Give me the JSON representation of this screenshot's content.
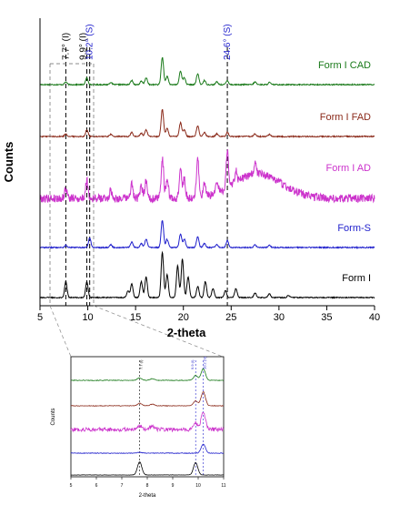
{
  "chart_data": [
    {
      "type": "line",
      "xlabel": "2-theta",
      "ylabel": "Counts",
      "xlim": [
        5,
        40
      ],
      "x_ticks": [
        5,
        10,
        15,
        20,
        25,
        30,
        35,
        40
      ],
      "vlines": [
        {
          "x": 7.7,
          "label": "7.7° (I)",
          "color": "#000000"
        },
        {
          "x": 9.9,
          "label": "9.9° (I)",
          "color": "#000000"
        },
        {
          "x": 10.2,
          "label": "10.2° (S)",
          "color": "#1f1fcc"
        },
        {
          "x": 24.6,
          "label": "24.6° (S)",
          "color": "#1f1fcc"
        }
      ],
      "series": [
        {
          "name": "Form I CAD",
          "color": "#1a7a1a",
          "peaks": [
            [
              7.7,
              0.1
            ],
            [
              9.9,
              0.25
            ],
            [
              12.4,
              0.08
            ],
            [
              14.6,
              0.15
            ],
            [
              15.6,
              0.12
            ],
            [
              16.1,
              0.25
            ],
            [
              17.8,
              1.0
            ],
            [
              18.3,
              0.3
            ],
            [
              19.7,
              0.5
            ],
            [
              20.1,
              0.25
            ],
            [
              21.5,
              0.4
            ],
            [
              22.2,
              0.15
            ],
            [
              23.5,
              0.1
            ],
            [
              24.6,
              0.15
            ],
            [
              27.5,
              0.1
            ],
            [
              29.0,
              0.08
            ]
          ],
          "noise": 0.02
        },
        {
          "name": "Form I FAD",
          "color": "#8b2a1a",
          "peaks": [
            [
              7.7,
              0.1
            ],
            [
              9.9,
              0.25
            ],
            [
              12.4,
              0.08
            ],
            [
              14.6,
              0.15
            ],
            [
              15.6,
              0.12
            ],
            [
              16.1,
              0.25
            ],
            [
              17.8,
              1.0
            ],
            [
              18.3,
              0.3
            ],
            [
              19.7,
              0.5
            ],
            [
              20.1,
              0.25
            ],
            [
              21.5,
              0.4
            ],
            [
              22.2,
              0.15
            ],
            [
              23.5,
              0.1
            ],
            [
              24.6,
              0.15
            ],
            [
              27.5,
              0.1
            ],
            [
              29.0,
              0.08
            ]
          ],
          "noise": 0.02
        },
        {
          "name": "Form I AD",
          "color": "#cc33cc",
          "peaks": [
            [
              7.7,
              0.25
            ],
            [
              9.9,
              0.45
            ],
            [
              12.4,
              0.2
            ],
            [
              14.6,
              0.35
            ],
            [
              15.6,
              0.3
            ],
            [
              16.1,
              0.45
            ],
            [
              17.8,
              1.0
            ],
            [
              18.3,
              0.5
            ],
            [
              19.7,
              0.7
            ],
            [
              20.1,
              0.45
            ],
            [
              21.5,
              0.95
            ],
            [
              22.2,
              0.3
            ],
            [
              23.5,
              0.25
            ],
            [
              24.6,
              0.9
            ],
            [
              25.5,
              0.3
            ],
            [
              27.5,
              0.25
            ]
          ],
          "halo": {
            "center": 27.8,
            "width": 3.5,
            "height": 0.6
          },
          "noise": 0.1
        },
        {
          "name": "Form-S",
          "color": "#1f1fcc",
          "peaks": [
            [
              7.7,
              0.08
            ],
            [
              10.2,
              0.35
            ],
            [
              12.4,
              0.1
            ],
            [
              14.6,
              0.2
            ],
            [
              15.6,
              0.15
            ],
            [
              16.1,
              0.3
            ],
            [
              17.8,
              1.0
            ],
            [
              18.3,
              0.3
            ],
            [
              19.7,
              0.5
            ],
            [
              20.1,
              0.3
            ],
            [
              21.5,
              0.4
            ],
            [
              22.2,
              0.15
            ],
            [
              23.5,
              0.1
            ],
            [
              24.6,
              0.25
            ],
            [
              27.5,
              0.1
            ],
            [
              29.0,
              0.08
            ]
          ],
          "noise": 0.02
        },
        {
          "name": "Form I",
          "color": "#000000",
          "peaks": [
            [
              7.7,
              0.35
            ],
            [
              9.9,
              0.35
            ],
            [
              14.2,
              0.15
            ],
            [
              14.6,
              0.3
            ],
            [
              15.6,
              0.35
            ],
            [
              16.1,
              0.45
            ],
            [
              17.8,
              1.0
            ],
            [
              18.3,
              0.5
            ],
            [
              19.4,
              0.7
            ],
            [
              19.9,
              0.85
            ],
            [
              20.5,
              0.45
            ],
            [
              21.5,
              0.25
            ],
            [
              22.3,
              0.35
            ],
            [
              23.1,
              0.2
            ],
            [
              24.4,
              0.15
            ],
            [
              25.5,
              0.2
            ],
            [
              27.5,
              0.1
            ],
            [
              29.0,
              0.08
            ],
            [
              31.0,
              0.05
            ]
          ],
          "noise": 0.01
        }
      ]
    },
    {
      "type": "line",
      "xlabel": "2-theta",
      "ylabel": "Counts",
      "xlim": [
        5,
        11
      ],
      "x_ticks": [
        5,
        6,
        7,
        8,
        9,
        10,
        11
      ],
      "vlines": [
        {
          "x": 7.7,
          "label": "7.7 (I)",
          "color": "#000000"
        },
        {
          "x": 9.9,
          "label": "9.9 (I)",
          "color": "#1f1fcc"
        },
        {
          "x": 10.2,
          "label": "10.2 (S)",
          "color": "#1f1fcc"
        }
      ],
      "series": [
        {
          "color": "#1a7a1a",
          "peaks": [
            [
              7.7,
              0.15
            ],
            [
              8.2,
              0.1
            ],
            [
              9.9,
              0.3
            ],
            [
              10.2,
              0.7
            ]
          ],
          "noise": 0.02
        },
        {
          "color": "#8b2a1a",
          "peaks": [
            [
              7.7,
              0.15
            ],
            [
              8.2,
              0.1
            ],
            [
              9.9,
              0.3
            ],
            [
              10.2,
              0.85
            ]
          ],
          "noise": 0.02
        },
        {
          "color": "#cc33cc",
          "peaks": [
            [
              7.7,
              0.25
            ],
            [
              8.2,
              0.2
            ],
            [
              9.9,
              0.4
            ],
            [
              10.2,
              1.0
            ]
          ],
          "noise": 0.12
        },
        {
          "color": "#1f1fcc",
          "peaks": [
            [
              7.7,
              0.05
            ],
            [
              10.2,
              0.55
            ]
          ],
          "noise": 0.02
        },
        {
          "color": "#000000",
          "peaks": [
            [
              7.7,
              0.8
            ],
            [
              9.9,
              0.75
            ]
          ],
          "noise": 0.01
        }
      ]
    }
  ]
}
